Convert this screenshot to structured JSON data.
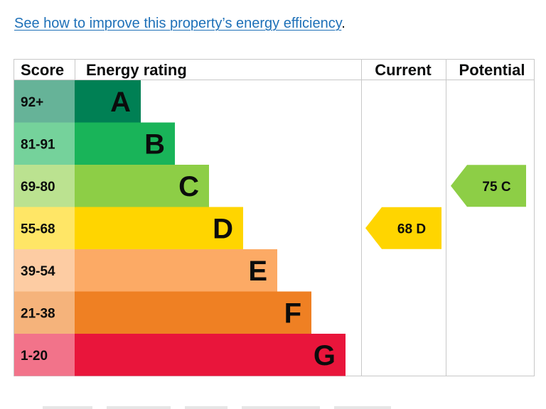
{
  "link": {
    "text": "See how to improve this property’s energy efficiency",
    "suffix": "."
  },
  "chart_data": {
    "type": "table",
    "headers": {
      "score": "Score",
      "rating": "Energy rating",
      "current": "Current",
      "potential": "Potential"
    },
    "bands": [
      {
        "score": "92+",
        "letter": "A",
        "band_color": "#008054",
        "score_bg": "#66b398"
      },
      {
        "score": "81-91",
        "letter": "B",
        "band_color": "#19b459",
        "score_bg": "#75d29b"
      },
      {
        "score": "69-80",
        "letter": "C",
        "band_color": "#8dce46",
        "score_bg": "#bbe290"
      },
      {
        "score": "55-68",
        "letter": "D",
        "band_color": "#ffd500",
        "score_bg": "#ffe666"
      },
      {
        "score": "39-54",
        "letter": "E",
        "band_color": "#fcaa65",
        "score_bg": "#fdcca3"
      },
      {
        "score": "21-38",
        "letter": "F",
        "band_color": "#ef8023",
        "score_bg": "#f5b37b"
      },
      {
        "score": "1-20",
        "letter": "G",
        "band_color": "#e9153b",
        "score_bg": "#f2738a"
      }
    ],
    "current": {
      "value": 68,
      "letter": "D",
      "label": "68  D",
      "color": "#ffd500"
    },
    "potential": {
      "value": 75,
      "letter": "C",
      "label": "75  C",
      "color": "#8dce46"
    }
  }
}
